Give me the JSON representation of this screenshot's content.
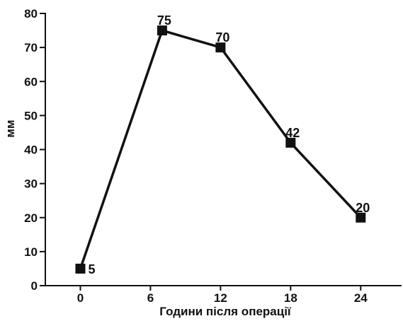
{
  "chart_data": {
    "type": "line",
    "title": "",
    "xlabel": "Години після операції",
    "ylabel": "мм",
    "x_ticks": [
      0,
      6,
      12,
      18,
      24
    ],
    "x_tick_labels": [
      "0",
      "6",
      "12",
      "18",
      "24"
    ],
    "y_ticks": [
      0,
      10,
      20,
      30,
      40,
      50,
      60,
      70,
      80
    ],
    "y_tick_labels": [
      "0",
      "10",
      "20",
      "30",
      "40",
      "50",
      "60",
      "70",
      "80"
    ],
    "xlim": [
      -3,
      27.5
    ],
    "ylim": [
      0,
      80
    ],
    "grid": false,
    "series": [
      {
        "x": [
          0,
          7,
          12,
          18,
          24
        ],
        "y": [
          5,
          75,
          70,
          42,
          20
        ],
        "labels": [
          "5",
          "75",
          "70",
          "42",
          "20"
        ],
        "marker": "square",
        "color": "#111111"
      }
    ]
  }
}
